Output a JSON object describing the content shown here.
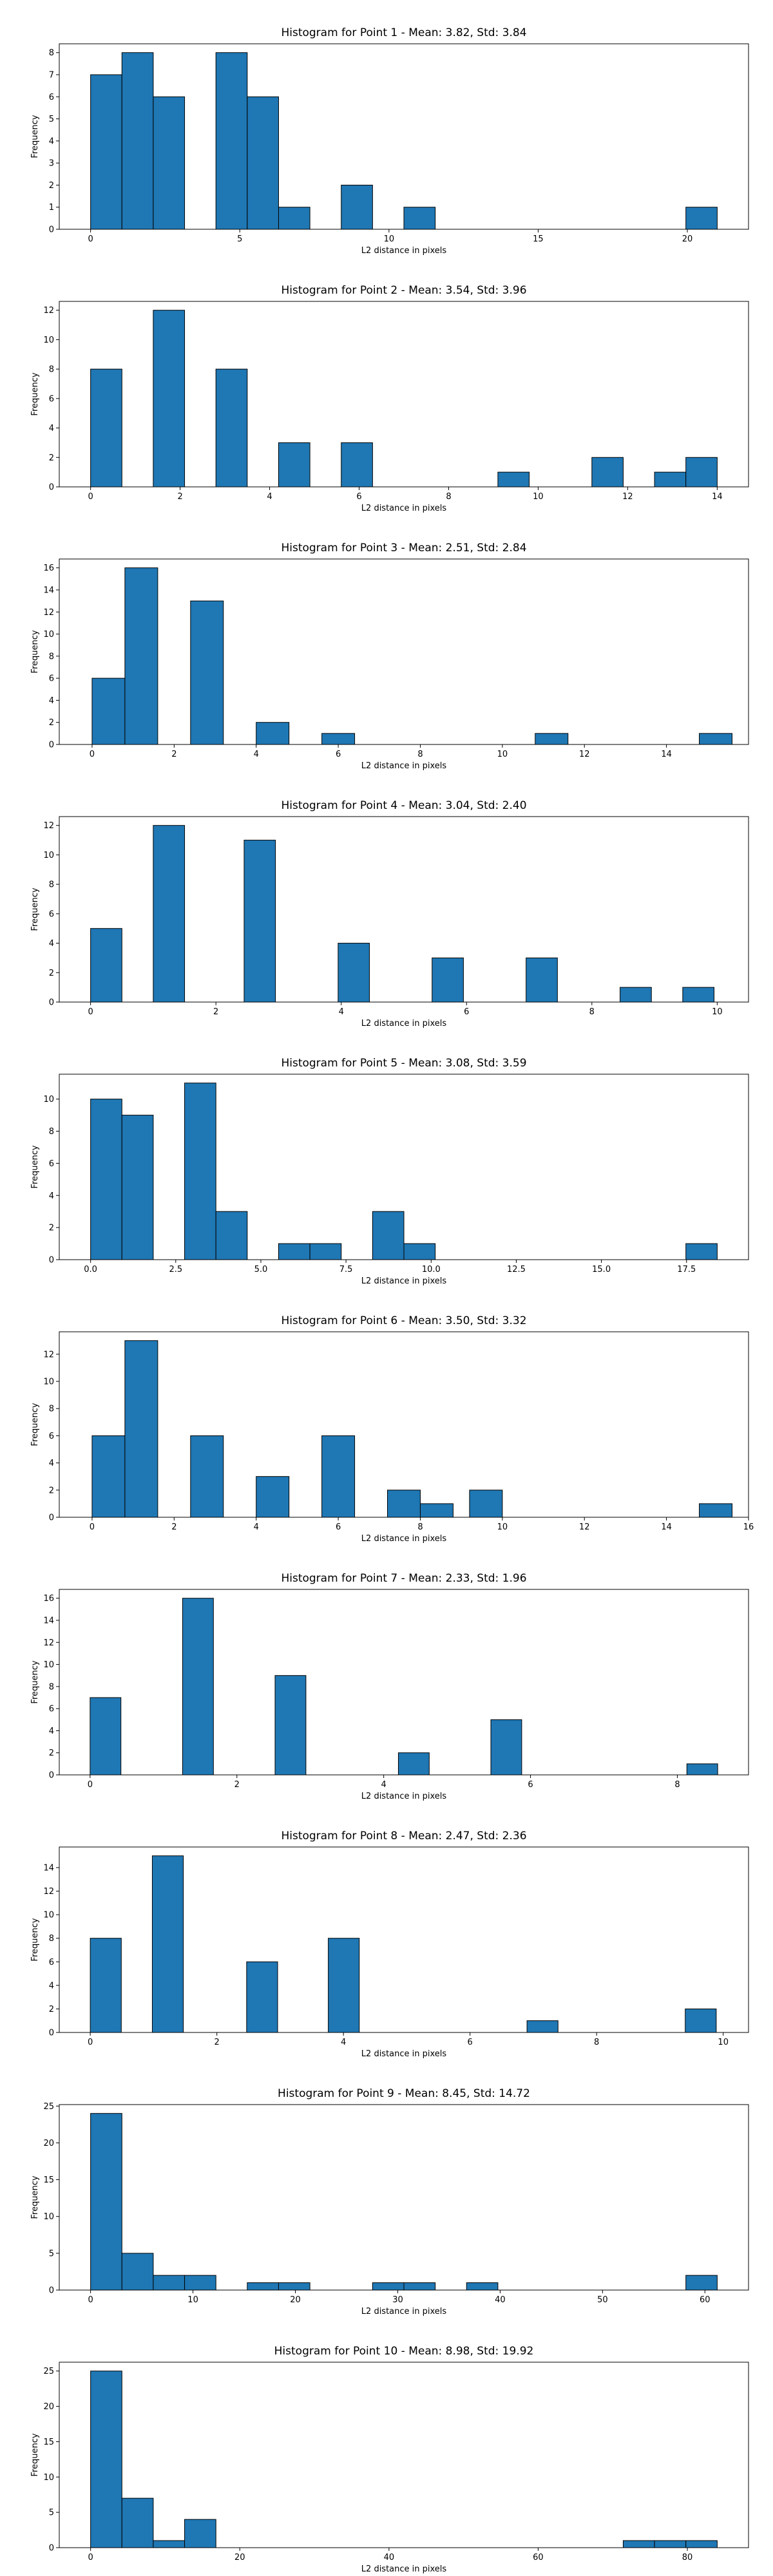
{
  "colors": {
    "bar": "#1f77b4",
    "edge": "#000000",
    "axis": "#000000"
  },
  "chart_data": [
    {
      "type": "bar",
      "title": "Histogram for Point 1 - Mean: 3.82, Std: 3.84",
      "xlabel": "L2 distance in pixels",
      "ylabel": "Frequency",
      "xlim": [
        -1.05,
        22.05
      ],
      "ylim": [
        0,
        8.4
      ],
      "bin_width": 1.05,
      "bins": [
        {
          "x": 0,
          "v": 7
        },
        {
          "x": 1.05,
          "v": 8
        },
        {
          "x": 2.1,
          "v": 6
        },
        {
          "x": 4.2,
          "v": 8
        },
        {
          "x": 5.25,
          "v": 6
        },
        {
          "x": 6.3,
          "v": 1
        },
        {
          "x": 8.4,
          "v": 2
        },
        {
          "x": 10.5,
          "v": 1
        },
        {
          "x": 19.95,
          "v": 1
        }
      ],
      "xticks": [
        {
          "v": 0,
          "label": "0"
        },
        {
          "v": 5,
          "label": "5"
        },
        {
          "v": 10,
          "label": "10"
        },
        {
          "v": 15,
          "label": "15"
        },
        {
          "v": 20,
          "label": "20"
        }
      ],
      "yticks": [
        {
          "v": 0,
          "label": "0"
        },
        {
          "v": 1,
          "label": "1"
        },
        {
          "v": 2,
          "label": "2"
        },
        {
          "v": 3,
          "label": "3"
        },
        {
          "v": 4,
          "label": "4"
        },
        {
          "v": 5,
          "label": "5"
        },
        {
          "v": 6,
          "label": "6"
        },
        {
          "v": 7,
          "label": "7"
        },
        {
          "v": 8,
          "label": "8"
        }
      ]
    },
    {
      "type": "bar",
      "title": "Histogram for Point 2 - Mean: 3.54, Std: 3.96",
      "xlabel": "L2 distance in pixels",
      "ylabel": "Frequency",
      "xlim": [
        -0.7,
        14.7
      ],
      "ylim": [
        0,
        12.6
      ],
      "bin_width": 0.7,
      "bins": [
        {
          "x": 0,
          "v": 8
        },
        {
          "x": 1.4,
          "v": 12
        },
        {
          "x": 2.8,
          "v": 8
        },
        {
          "x": 4.2,
          "v": 3
        },
        {
          "x": 5.6,
          "v": 3
        },
        {
          "x": 9.1,
          "v": 1
        },
        {
          "x": 11.2,
          "v": 2
        },
        {
          "x": 12.6,
          "v": 1
        },
        {
          "x": 13.3,
          "v": 2
        }
      ],
      "xticks": [
        {
          "v": 0,
          "label": "0"
        },
        {
          "v": 2,
          "label": "2"
        },
        {
          "v": 4,
          "label": "4"
        },
        {
          "v": 6,
          "label": "6"
        },
        {
          "v": 8,
          "label": "8"
        },
        {
          "v": 10,
          "label": "10"
        },
        {
          "v": 12,
          "label": "12"
        },
        {
          "v": 14,
          "label": "14"
        }
      ],
      "yticks": [
        {
          "v": 0,
          "label": "0"
        },
        {
          "v": 2,
          "label": "2"
        },
        {
          "v": 4,
          "label": "4"
        },
        {
          "v": 6,
          "label": "6"
        },
        {
          "v": 8,
          "label": "8"
        },
        {
          "v": 10,
          "label": "10"
        },
        {
          "v": 12,
          "label": "12"
        }
      ]
    },
    {
      "type": "bar",
      "title": "Histogram for Point 3 - Mean: 2.51, Std: 2.84",
      "xlabel": "L2 distance in pixels",
      "ylabel": "Frequency",
      "xlim": [
        -0.8,
        16.0
      ],
      "ylim": [
        0,
        16.8
      ],
      "bin_width": 0.8,
      "bins": [
        {
          "x": 0,
          "v": 6
        },
        {
          "x": 0.8,
          "v": 16
        },
        {
          "x": 2.4,
          "v": 13
        },
        {
          "x": 4.0,
          "v": 2
        },
        {
          "x": 5.6,
          "v": 1
        },
        {
          "x": 10.8,
          "v": 1
        },
        {
          "x": 14.8,
          "v": 1
        }
      ],
      "xticks": [
        {
          "v": 0,
          "label": "0"
        },
        {
          "v": 2,
          "label": "2"
        },
        {
          "v": 4,
          "label": "4"
        },
        {
          "v": 6,
          "label": "6"
        },
        {
          "v": 8,
          "label": "8"
        },
        {
          "v": 10,
          "label": "10"
        },
        {
          "v": 12,
          "label": "12"
        },
        {
          "v": 14,
          "label": "14"
        }
      ],
      "yticks": [
        {
          "v": 0,
          "label": "0"
        },
        {
          "v": 2,
          "label": "2"
        },
        {
          "v": 4,
          "label": "4"
        },
        {
          "v": 6,
          "label": "6"
        },
        {
          "v": 8,
          "label": "8"
        },
        {
          "v": 10,
          "label": "10"
        },
        {
          "v": 12,
          "label": "12"
        },
        {
          "v": 14,
          "label": "14"
        },
        {
          "v": 16,
          "label": "16"
        }
      ]
    },
    {
      "type": "bar",
      "title": "Histogram for Point 4 - Mean: 3.04, Std: 2.40",
      "xlabel": "L2 distance in pixels",
      "ylabel": "Frequency",
      "xlim": [
        -0.5,
        10.5
      ],
      "ylim": [
        0,
        12.6
      ],
      "bin_width": 0.5,
      "bins": [
        {
          "x": 0,
          "v": 5
        },
        {
          "x": 1.0,
          "v": 12
        },
        {
          "x": 2.45,
          "v": 11
        },
        {
          "x": 3.95,
          "v": 4
        },
        {
          "x": 5.45,
          "v": 3
        },
        {
          "x": 6.95,
          "v": 3
        },
        {
          "x": 8.45,
          "v": 1
        },
        {
          "x": 9.45,
          "v": 1
        }
      ],
      "xticks": [
        {
          "v": 0,
          "label": "0"
        },
        {
          "v": 2,
          "label": "2"
        },
        {
          "v": 4,
          "label": "4"
        },
        {
          "v": 6,
          "label": "6"
        },
        {
          "v": 8,
          "label": "8"
        },
        {
          "v": 10,
          "label": "10"
        }
      ],
      "yticks": [
        {
          "v": 0,
          "label": "0"
        },
        {
          "v": 2,
          "label": "2"
        },
        {
          "v": 4,
          "label": "4"
        },
        {
          "v": 6,
          "label": "6"
        },
        {
          "v": 8,
          "label": "8"
        },
        {
          "v": 10,
          "label": "10"
        },
        {
          "v": 12,
          "label": "12"
        }
      ]
    },
    {
      "type": "bar",
      "title": "Histogram for Point 5 - Mean: 3.08, Std: 3.59",
      "xlabel": "L2 distance in pixels",
      "ylabel": "Frequency",
      "xlim": [
        -0.92,
        19.32
      ],
      "ylim": [
        0,
        11.55
      ],
      "bin_width": 0.92,
      "bins": [
        {
          "x": 0,
          "v": 10
        },
        {
          "x": 0.92,
          "v": 9
        },
        {
          "x": 2.76,
          "v": 11
        },
        {
          "x": 3.68,
          "v": 3
        },
        {
          "x": 5.52,
          "v": 1
        },
        {
          "x": 6.44,
          "v": 1
        },
        {
          "x": 8.28,
          "v": 3
        },
        {
          "x": 9.2,
          "v": 1
        },
        {
          "x": 17.48,
          "v": 1
        }
      ],
      "xticks": [
        {
          "v": 0,
          "label": "0.0"
        },
        {
          "v": 2.5,
          "label": "2.5"
        },
        {
          "v": 5,
          "label": "5.0"
        },
        {
          "v": 7.5,
          "label": "7.5"
        },
        {
          "v": 10,
          "label": "10.0"
        },
        {
          "v": 12.5,
          "label": "12.5"
        },
        {
          "v": 15,
          "label": "15.0"
        },
        {
          "v": 17.5,
          "label": "17.5"
        }
      ],
      "yticks": [
        {
          "v": 0,
          "label": "0"
        },
        {
          "v": 2,
          "label": "2"
        },
        {
          "v": 4,
          "label": "4"
        },
        {
          "v": 6,
          "label": "6"
        },
        {
          "v": 8,
          "label": "8"
        },
        {
          "v": 10,
          "label": "10"
        }
      ]
    },
    {
      "type": "bar",
      "title": "Histogram for Point 6 - Mean: 3.50, Std: 3.32",
      "xlabel": "L2 distance in pixels",
      "ylabel": "Frequency",
      "xlim": [
        -0.8,
        16.0
      ],
      "ylim": [
        0,
        13.65
      ],
      "bin_width": 0.8,
      "bins": [
        {
          "x": 0,
          "v": 6
        },
        {
          "x": 0.8,
          "v": 13
        },
        {
          "x": 2.4,
          "v": 6
        },
        {
          "x": 4.0,
          "v": 3
        },
        {
          "x": 5.6,
          "v": 6
        },
        {
          "x": 7.2,
          "v": 2
        },
        {
          "x": 8.0,
          "v": 1
        },
        {
          "x": 9.2,
          "v": 2
        },
        {
          "x": 14.8,
          "v": 1
        }
      ],
      "xticks": [
        {
          "v": 0,
          "label": "0"
        },
        {
          "v": 2,
          "label": "2"
        },
        {
          "v": 4,
          "label": "4"
        },
        {
          "v": 6,
          "label": "6"
        },
        {
          "v": 8,
          "label": "8"
        },
        {
          "v": 10,
          "label": "10"
        },
        {
          "v": 12,
          "label": "12"
        },
        {
          "v": 14,
          "label": "14"
        },
        {
          "v": 16,
          "label": "16"
        }
      ],
      "yticks": [
        {
          "v": 0,
          "label": "0"
        },
        {
          "v": 2,
          "label": "2"
        },
        {
          "v": 4,
          "label": "4"
        },
        {
          "v": 6,
          "label": "6"
        },
        {
          "v": 8,
          "label": "8"
        },
        {
          "v": 10,
          "label": "10"
        },
        {
          "v": 12,
          "label": "12"
        }
      ]
    },
    {
      "type": "bar",
      "title": "Histogram for Point 7 - Mean: 2.33, Std: 1.96",
      "xlabel": "L2 distance in pixels",
      "ylabel": "Frequency",
      "xlim": [
        -0.42,
        8.97
      ],
      "ylim": [
        0,
        16.8
      ],
      "bin_width": 0.42,
      "bins": [
        {
          "x": 0,
          "v": 7
        },
        {
          "x": 1.26,
          "v": 16
        },
        {
          "x": 2.52,
          "v": 9
        },
        {
          "x": 4.2,
          "v": 2
        },
        {
          "x": 5.46,
          "v": 5
        },
        {
          "x": 8.13,
          "v": 1
        }
      ],
      "xticks": [
        {
          "v": 0,
          "label": "0"
        },
        {
          "v": 2,
          "label": "2"
        },
        {
          "v": 4,
          "label": "4"
        },
        {
          "v": 6,
          "label": "6"
        },
        {
          "v": 8,
          "label": "8"
        }
      ],
      "yticks": [
        {
          "v": 0,
          "label": "0"
        },
        {
          "v": 2,
          "label": "2"
        },
        {
          "v": 4,
          "label": "4"
        },
        {
          "v": 6,
          "label": "6"
        },
        {
          "v": 8,
          "label": "8"
        },
        {
          "v": 10,
          "label": "10"
        },
        {
          "v": 12,
          "label": "12"
        },
        {
          "v": 14,
          "label": "14"
        },
        {
          "v": 16,
          "label": "16"
        }
      ]
    },
    {
      "type": "bar",
      "title": "Histogram for Point 8 - Mean: 2.47, Std: 2.36",
      "xlabel": "L2 distance in pixels",
      "ylabel": "Frequency",
      "xlim": [
        -0.49,
        10.4
      ],
      "ylim": [
        0,
        15.75
      ],
      "bin_width": 0.49,
      "bins": [
        {
          "x": 0,
          "v": 8
        },
        {
          "x": 0.98,
          "v": 15
        },
        {
          "x": 2.47,
          "v": 6
        },
        {
          "x": 3.76,
          "v": 8
        },
        {
          "x": 6.9,
          "v": 1
        },
        {
          "x": 9.4,
          "v": 2
        }
      ],
      "xticks": [
        {
          "v": 0,
          "label": "0"
        },
        {
          "v": 2,
          "label": "2"
        },
        {
          "v": 4,
          "label": "4"
        },
        {
          "v": 6,
          "label": "6"
        },
        {
          "v": 8,
          "label": "8"
        },
        {
          "v": 10,
          "label": "10"
        }
      ],
      "yticks": [
        {
          "v": 0,
          "label": "0"
        },
        {
          "v": 2,
          "label": "2"
        },
        {
          "v": 4,
          "label": "4"
        },
        {
          "v": 6,
          "label": "6"
        },
        {
          "v": 8,
          "label": "8"
        },
        {
          "v": 10,
          "label": "10"
        },
        {
          "v": 12,
          "label": "12"
        },
        {
          "v": 14,
          "label": "14"
        }
      ]
    },
    {
      "type": "bar",
      "title": "Histogram for Point 9 - Mean: 8.45, Std: 14.72",
      "xlabel": "L2 distance in pixels",
      "ylabel": "Frequency",
      "xlim": [
        -3.06,
        64.26
      ],
      "ylim": [
        0,
        25.2
      ],
      "bin_width": 3.06,
      "bins": [
        {
          "x": 0,
          "v": 24
        },
        {
          "x": 3.06,
          "v": 5
        },
        {
          "x": 6.12,
          "v": 2
        },
        {
          "x": 9.18,
          "v": 2
        },
        {
          "x": 15.3,
          "v": 1
        },
        {
          "x": 18.36,
          "v": 1
        },
        {
          "x": 27.54,
          "v": 1
        },
        {
          "x": 30.6,
          "v": 1
        },
        {
          "x": 36.72,
          "v": 1
        },
        {
          "x": 58.14,
          "v": 2
        }
      ],
      "xticks": [
        {
          "v": 0,
          "label": "0"
        },
        {
          "v": 10,
          "label": "10"
        },
        {
          "v": 20,
          "label": "20"
        },
        {
          "v": 30,
          "label": "30"
        },
        {
          "v": 40,
          "label": "40"
        },
        {
          "v": 50,
          "label": "50"
        },
        {
          "v": 60,
          "label": "60"
        }
      ],
      "yticks": [
        {
          "v": 0,
          "label": "0"
        },
        {
          "v": 5,
          "label": "5"
        },
        {
          "v": 10,
          "label": "10"
        },
        {
          "v": 15,
          "label": "15"
        },
        {
          "v": 20,
          "label": "20"
        },
        {
          "v": 25,
          "label": "25"
        }
      ]
    },
    {
      "type": "bar",
      "title": "Histogram for Point 10 - Mean: 8.98, Std: 19.92",
      "xlabel": "L2 distance in pixels",
      "ylabel": "Frequency",
      "xlim": [
        -4.2,
        88.2
      ],
      "ylim": [
        0,
        26.25
      ],
      "bin_width": 4.2,
      "bins": [
        {
          "x": 0,
          "v": 25
        },
        {
          "x": 4.2,
          "v": 7
        },
        {
          "x": 8.4,
          "v": 1
        },
        {
          "x": 12.6,
          "v": 4
        },
        {
          "x": 71.4,
          "v": 1
        },
        {
          "x": 75.6,
          "v": 1
        },
        {
          "x": 79.8,
          "v": 1
        }
      ],
      "xticks": [
        {
          "v": 0,
          "label": "0"
        },
        {
          "v": 20,
          "label": "20"
        },
        {
          "v": 40,
          "label": "40"
        },
        {
          "v": 60,
          "label": "60"
        },
        {
          "v": 80,
          "label": "80"
        }
      ],
      "yticks": [
        {
          "v": 0,
          "label": "0"
        },
        {
          "v": 5,
          "label": "5"
        },
        {
          "v": 10,
          "label": "10"
        },
        {
          "v": 15,
          "label": "15"
        },
        {
          "v": 20,
          "label": "20"
        },
        {
          "v": 25,
          "label": "25"
        }
      ]
    }
  ]
}
